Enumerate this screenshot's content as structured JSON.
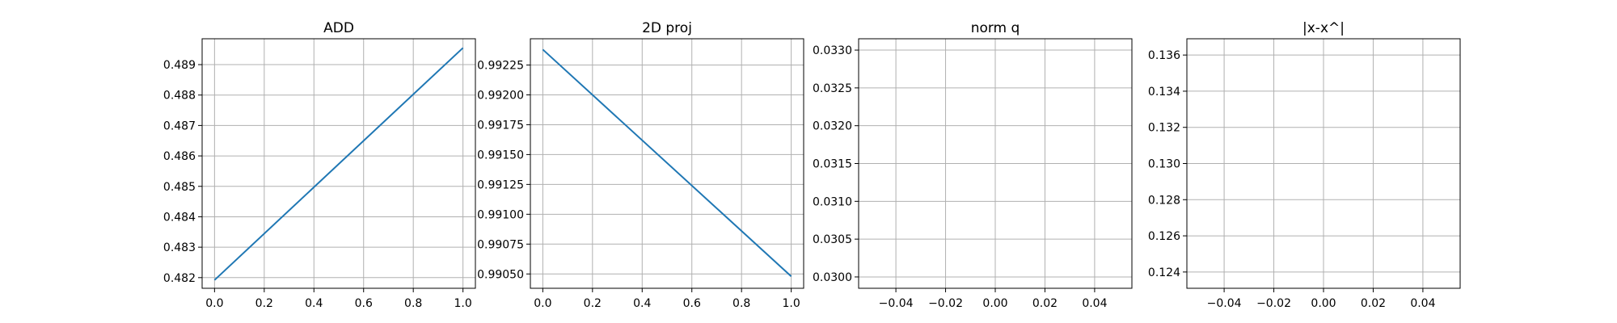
{
  "colors": {
    "series": "#1f77b4",
    "grid": "#b0b0b0",
    "frame": "#000000"
  },
  "chart_data": [
    {
      "type": "line",
      "title": "ADD",
      "xlabel": "",
      "ylabel": "",
      "grid": true,
      "xlim": [
        -0.05,
        1.05
      ],
      "ylim": [
        0.48165,
        0.48985
      ],
      "xticks": [
        0.0,
        0.2,
        0.4,
        0.6,
        0.8,
        1.0
      ],
      "xtick_labels": [
        "0.0",
        "0.2",
        "0.4",
        "0.6",
        "0.8",
        "1.0"
      ],
      "yticks": [
        0.482,
        0.483,
        0.484,
        0.485,
        0.486,
        0.487,
        0.488,
        0.489
      ],
      "ytick_labels": [
        "0.482",
        "0.483",
        "0.484",
        "0.485",
        "0.486",
        "0.487",
        "0.488",
        "0.489"
      ],
      "series": [
        {
          "x": [
            0,
            1
          ],
          "y": [
            0.48192,
            0.48955
          ]
        }
      ]
    },
    {
      "type": "line",
      "title": "2D proj",
      "xlabel": "",
      "ylabel": "",
      "grid": true,
      "xlim": [
        -0.05,
        1.05
      ],
      "ylim": [
        0.99038,
        0.99247
      ],
      "xticks": [
        0.0,
        0.2,
        0.4,
        0.6,
        0.8,
        1.0
      ],
      "xtick_labels": [
        "0.0",
        "0.2",
        "0.4",
        "0.6",
        "0.8",
        "1.0"
      ],
      "yticks": [
        0.9905,
        0.99075,
        0.991,
        0.99125,
        0.9915,
        0.99175,
        0.992,
        0.99225
      ],
      "ytick_labels": [
        "0.99050",
        "0.99075",
        "0.99100",
        "0.99125",
        "0.99150",
        "0.99175",
        "0.99200",
        "0.99225"
      ],
      "series": [
        {
          "x": [
            0,
            1
          ],
          "y": [
            0.99238,
            0.99048
          ]
        }
      ]
    },
    {
      "type": "line",
      "title": "norm q",
      "xlabel": "",
      "ylabel": "",
      "grid": true,
      "xlim": [
        -0.055,
        0.055
      ],
      "ylim": [
        0.02985,
        0.03315
      ],
      "xticks": [
        -0.04,
        -0.02,
        0.0,
        0.02,
        0.04
      ],
      "xtick_labels": [
        "−0.04",
        "−0.02",
        "0.00",
        "0.02",
        "0.04"
      ],
      "yticks": [
        0.03,
        0.0305,
        0.031,
        0.0315,
        0.032,
        0.0325,
        0.033
      ],
      "ytick_labels": [
        "0.0300",
        "0.0305",
        "0.0310",
        "0.0315",
        "0.0320",
        "0.0325",
        "0.0330"
      ],
      "series": [
        {
          "x": [],
          "y": []
        }
      ]
    },
    {
      "type": "line",
      "title": "|x-x^|",
      "xlabel": "",
      "ylabel": "",
      "grid": true,
      "xlim": [
        -0.055,
        0.055
      ],
      "ylim": [
        0.1231,
        0.1369
      ],
      "xticks": [
        -0.04,
        -0.02,
        0.0,
        0.02,
        0.04
      ],
      "xtick_labels": [
        "−0.04",
        "−0.02",
        "0.00",
        "0.02",
        "0.04"
      ],
      "yticks": [
        0.124,
        0.126,
        0.128,
        0.13,
        0.132,
        0.134,
        0.136
      ],
      "ytick_labels": [
        "0.124",
        "0.126",
        "0.128",
        "0.130",
        "0.132",
        "0.134",
        "0.136"
      ],
      "series": [
        {
          "x": [],
          "y": []
        }
      ]
    }
  ]
}
